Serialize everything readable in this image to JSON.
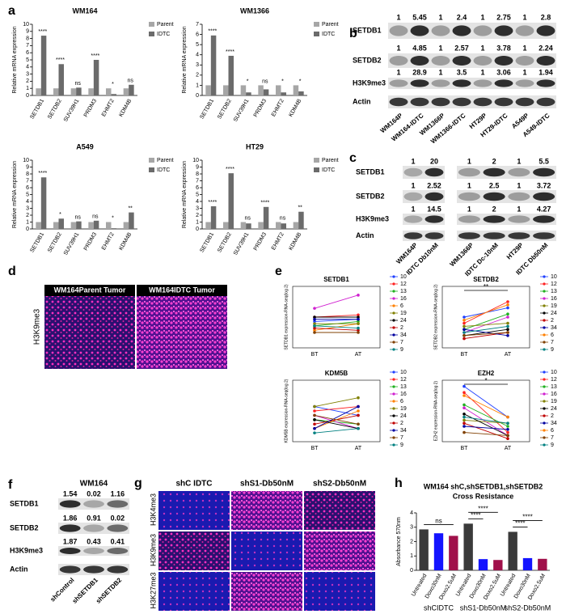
{
  "panel_labels": [
    "a",
    "b",
    "c",
    "d",
    "e",
    "f",
    "g",
    "h"
  ],
  "chart_data": [
    {
      "type": "bar",
      "title": "WM164",
      "ylabel": "Relative mRNA expression",
      "categories": [
        "SETDB1",
        "SETDB2",
        "SUV39H1",
        "PRDM3",
        "EHMT2",
        "KDM4B"
      ],
      "series": [
        {
          "name": "Parent",
          "color": "#a6a6a6",
          "values": [
            1,
            1,
            1,
            1,
            1,
            1
          ]
        },
        {
          "name": "IDTC",
          "color": "#6b6b6b",
          "values": [
            8.4,
            4.4,
            1.1,
            5.0,
            0.2,
            1.5
          ]
        }
      ],
      "annotations": [
        "****",
        "****",
        "ns",
        "****",
        "*",
        "ns"
      ],
      "ylim": [
        0,
        10
      ],
      "yticks": [
        0,
        1,
        2,
        3,
        4,
        5,
        6,
        7,
        8,
        9,
        10
      ]
    },
    {
      "type": "bar",
      "title": "WM1366",
      "ylabel": "Relative mRNA expression",
      "categories": [
        "SETDB1",
        "SETDB2",
        "SUV39H1",
        "PRDM3",
        "EHMT2",
        "KDM4B"
      ],
      "series": [
        {
          "name": "Parent",
          "color": "#a6a6a6",
          "values": [
            1,
            1,
            1,
            1,
            1,
            1
          ]
        },
        {
          "name": "IDTC",
          "color": "#6b6b6b",
          "values": [
            5.9,
            3.9,
            0.3,
            0.6,
            0.3,
            0.4
          ]
        }
      ],
      "annotations": [
        "****",
        "****",
        "*",
        "ns",
        "*",
        "*"
      ],
      "ylim": [
        0,
        7
      ],
      "yticks": [
        0,
        1,
        2,
        3,
        4,
        5,
        6,
        7
      ]
    },
    {
      "type": "bar",
      "title": "A549",
      "ylabel": "Relative mRNA expression",
      "categories": [
        "SETDB1",
        "SETDB2",
        "SUV39H1",
        "PRDM3",
        "EHMT2",
        "KDM4B"
      ],
      "series": [
        {
          "name": "Parent",
          "color": "#a6a6a6",
          "values": [
            1,
            1,
            1,
            1,
            1,
            1
          ]
        },
        {
          "name": "IDTC",
          "color": "#6b6b6b",
          "values": [
            7.5,
            1.5,
            1.1,
            1.2,
            0.1,
            2.4
          ]
        }
      ],
      "annotations": [
        "****",
        "*",
        "ns",
        "ns",
        "*",
        "**"
      ],
      "ylim": [
        0,
        10
      ],
      "yticks": [
        0,
        1,
        2,
        3,
        4,
        5,
        6,
        7,
        8,
        9,
        10
      ]
    },
    {
      "type": "bar",
      "title": "HT29",
      "ylabel": "Relative mRNA expression",
      "categories": [
        "SETDB1",
        "SETDB2",
        "SUV39H1",
        "PRDM3",
        "EHMT2",
        "KDM4B"
      ],
      "series": [
        {
          "name": "Parent",
          "color": "#a6a6a6",
          "values": [
            1,
            1,
            1,
            1,
            1,
            1
          ]
        },
        {
          "name": "IDTC",
          "color": "#6b6b6b",
          "values": [
            3.3,
            8.1,
            0.8,
            3.2,
            0.8,
            2.5
          ]
        }
      ],
      "annotations": [
        "****",
        "****",
        "ns",
        "****",
        "ns",
        "**"
      ],
      "ylim": [
        0,
        10
      ],
      "yticks": [
        0,
        1,
        2,
        3,
        4,
        5,
        6,
        7,
        8,
        9,
        10
      ]
    },
    {
      "type": "line",
      "title": "SETDB1",
      "ylabel": "SETDB1 expression-RNA-seq(log 2)",
      "categories": [
        "BT",
        "AT"
      ],
      "ylim": [
        0,
        28
      ],
      "series": [
        {
          "name": "10",
          "color": "#1f3fff",
          "values": [
            12,
            13
          ]
        },
        {
          "name": "12",
          "color": "#ff2020",
          "values": [
            14,
            15
          ]
        },
        {
          "name": "13",
          "color": "#20b020",
          "values": [
            10,
            12
          ]
        },
        {
          "name": "16",
          "color": "#d020d0",
          "values": [
            18,
            24
          ]
        },
        {
          "name": "6",
          "color": "#ff8000",
          "values": [
            8,
            11
          ]
        },
        {
          "name": "19",
          "color": "#808000",
          "values": [
            11,
            11
          ]
        },
        {
          "name": "24",
          "color": "#000000",
          "values": [
            14,
            14
          ]
        },
        {
          "name": "2",
          "color": "#c00000",
          "values": [
            9,
            8
          ]
        },
        {
          "name": "34",
          "color": "#0000a0",
          "values": [
            13,
            13
          ]
        },
        {
          "name": "7",
          "color": "#804000",
          "values": [
            7,
            7
          ]
        },
        {
          "name": "9",
          "color": "#008080",
          "values": [
            10,
            9
          ]
        }
      ]
    },
    {
      "type": "line",
      "title": "SETDB2",
      "ylabel": "SETDB2 expression-RNA-seq(log 2)",
      "categories": [
        "BT",
        "AT"
      ],
      "ylim": [
        0,
        20
      ],
      "annotation": "**",
      "series": [
        {
          "name": "10",
          "color": "#1f3fff",
          "values": [
            10,
            13
          ]
        },
        {
          "name": "12",
          "color": "#ff2020",
          "values": [
            8,
            15
          ]
        },
        {
          "name": "13",
          "color": "#20b020",
          "values": [
            6,
            11
          ]
        },
        {
          "name": "16",
          "color": "#d020d0",
          "values": [
            5,
            10
          ]
        },
        {
          "name": "19",
          "color": "#808000",
          "values": [
            7,
            8
          ]
        },
        {
          "name": "24",
          "color": "#000000",
          "values": [
            4,
            6
          ]
        },
        {
          "name": "2",
          "color": "#c00000",
          "values": [
            3,
            5
          ]
        },
        {
          "name": "34",
          "color": "#0000a0",
          "values": [
            6,
            4
          ]
        },
        {
          "name": "6",
          "color": "#ff8000",
          "values": [
            9,
            14
          ]
        },
        {
          "name": "7",
          "color": "#804000",
          "values": [
            4,
            5
          ]
        },
        {
          "name": "9",
          "color": "#008080",
          "values": [
            5,
            7
          ]
        }
      ]
    },
    {
      "type": "line",
      "title": "KDM5B",
      "ylabel": "KDM5B expression-RNA-seq(log 2)",
      "categories": [
        "BT",
        "AT"
      ],
      "ylim": [
        0,
        14
      ],
      "series": [
        {
          "name": "10",
          "color": "#1f3fff",
          "values": [
            8,
            6
          ]
        },
        {
          "name": "12",
          "color": "#ff2020",
          "values": [
            7,
            8
          ]
        },
        {
          "name": "13",
          "color": "#20b020",
          "values": [
            5,
            4
          ]
        },
        {
          "name": "16",
          "color": "#d020d0",
          "values": [
            6,
            3
          ]
        },
        {
          "name": "6",
          "color": "#ff8000",
          "values": [
            3,
            7
          ]
        },
        {
          "name": "19",
          "color": "#808000",
          "values": [
            8,
            10
          ]
        },
        {
          "name": "24",
          "color": "#000000",
          "values": [
            5,
            3
          ]
        },
        {
          "name": "2",
          "color": "#c00000",
          "values": [
            4,
            6
          ]
        },
        {
          "name": "34",
          "color": "#0000a0",
          "values": [
            3,
            8
          ]
        },
        {
          "name": "7",
          "color": "#804000",
          "values": [
            6,
            4
          ]
        },
        {
          "name": "9",
          "color": "#008080",
          "values": [
            2,
            3
          ]
        }
      ]
    },
    {
      "type": "line",
      "title": "EZH2",
      "ylabel": "EZH2 expression-RNA-seq(log 2)",
      "categories": [
        "BT",
        "AT"
      ],
      "ylim": [
        0,
        20
      ],
      "annotation": "*",
      "series": [
        {
          "name": "10",
          "color": "#1f3fff",
          "values": [
            18,
            8
          ]
        },
        {
          "name": "12",
          "color": "#ff2020",
          "values": [
            16,
            3
          ]
        },
        {
          "name": "13",
          "color": "#20b020",
          "values": [
            12,
            5
          ]
        },
        {
          "name": "16",
          "color": "#d020d0",
          "values": [
            11,
            2
          ]
        },
        {
          "name": "19",
          "color": "#808000",
          "values": [
            7,
            6
          ]
        },
        {
          "name": "24",
          "color": "#000000",
          "values": [
            9,
            2
          ]
        },
        {
          "name": "2",
          "color": "#c00000",
          "values": [
            6,
            1
          ]
        },
        {
          "name": "34",
          "color": "#0000a0",
          "values": [
            5,
            4
          ]
        },
        {
          "name": "6",
          "color": "#ff8000",
          "values": [
            15,
            8
          ]
        },
        {
          "name": "7",
          "color": "#804000",
          "values": [
            3,
            2
          ]
        },
        {
          "name": "9",
          "color": "#008080",
          "values": [
            8,
            6
          ]
        }
      ]
    },
    {
      "type": "bar",
      "title": "WM164 shC,shSETDB1,shSETDB2",
      "subtitle": "Cross Resistance",
      "ylabel": "Absorbance 570nm",
      "categories": [
        "Untreated",
        "Doxo30nM",
        "Doxo2.5uM",
        "Untreated",
        "Doxo30nM",
        "Doxo2.5uM",
        "Untreated",
        "Doxo30nM",
        "Doxo2.5uM"
      ],
      "groups": [
        "shCIDTC",
        "shS1-Db50nM",
        "shS2-Db50nM"
      ],
      "values": [
        2.85,
        2.58,
        2.4,
        3.25,
        0.78,
        0.72,
        2.68,
        0.85,
        0.8
      ],
      "colors": [
        "#3a3a3a",
        "#1414ff",
        "#a0104a",
        "#3a3a3a",
        "#1414ff",
        "#a0104a",
        "#3a3a3a",
        "#1414ff",
        "#a0104a"
      ],
      "annotations": [
        "ns",
        "****",
        "****",
        "****",
        "****"
      ],
      "ylim": [
        0,
        4
      ],
      "yticks": [
        0,
        1,
        2,
        3,
        4
      ]
    }
  ],
  "blot_b": {
    "rows": [
      "SETDB1",
      "SETDB2",
      "H3K9me3",
      "Actin"
    ],
    "quant": [
      [
        1,
        5.45,
        1,
        2.4,
        1,
        2.75,
        1,
        2.8
      ],
      [
        1,
        4.85,
        1,
        2.57,
        1,
        3.78,
        1,
        2.24
      ],
      [
        1,
        28.9,
        1,
        3.5,
        1,
        3.06,
        1,
        1.94
      ]
    ],
    "lanes": [
      "WM164P",
      "WM164-IDTC",
      "WM1366P",
      "WM1366-IDTC",
      "HT29P",
      "HT29-IDTC",
      "A549P",
      "A549-IDTC"
    ]
  },
  "blot_c": {
    "rows": [
      "SETDB1",
      "SETDB2",
      "H3K9me3",
      "Actin"
    ],
    "quant_left": [
      [
        1,
        20
      ],
      [
        1,
        2.52
      ],
      [
        1,
        14.5
      ]
    ],
    "quant_right": [
      [
        1,
        2,
        1,
        5.5
      ],
      [
        1,
        2.5,
        1,
        3.72
      ],
      [
        1,
        2,
        1,
        4.27
      ]
    ],
    "lanes_left": [
      "WM164P",
      "IDTC Db10nM"
    ],
    "lanes_right": [
      "WM1366P",
      "IDTC Dc-10nM",
      "HT29P",
      "IDTC Db50nM"
    ]
  },
  "panel_d": {
    "columns": [
      "WM164Parent Tumor",
      "WM164IDTC Tumor"
    ],
    "row": "H3K9me3"
  },
  "blot_f": {
    "title": "WM164",
    "rows": [
      "SETDB1",
      "SETDB2",
      "H3K9me3",
      "Actin"
    ],
    "quant": [
      [
        1.54,
        0.02,
        1.16
      ],
      [
        1.86,
        0.91,
        0.02
      ],
      [
        1.87,
        0.43,
        0.41
      ]
    ],
    "lanes": [
      "shControl",
      "shSETDB1",
      "shSETDB2"
    ]
  },
  "panel_g": {
    "columns": [
      "shC IDTC",
      "shS1-Db50nM",
      "shS2-Db50nM"
    ],
    "rows": [
      "H3K4me3",
      "H3K9me3",
      "H3K27me3"
    ]
  }
}
